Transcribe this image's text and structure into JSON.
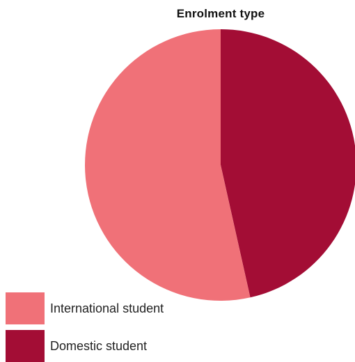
{
  "chart_data": {
    "type": "pie",
    "title": "Enrolment type",
    "categories": [
      "Domestic student",
      "International student"
    ],
    "values": [
      46.5,
      53.5
    ],
    "colors": [
      "#a30d35",
      "#f07178"
    ],
    "start_angle_deg": 0,
    "direction": "clockwise",
    "legend": {
      "position": "bottom-left",
      "items": [
        {
          "label": "International student",
          "color": "#f07178"
        },
        {
          "label": "Domestic student",
          "color": "#a30d35"
        }
      ]
    }
  }
}
